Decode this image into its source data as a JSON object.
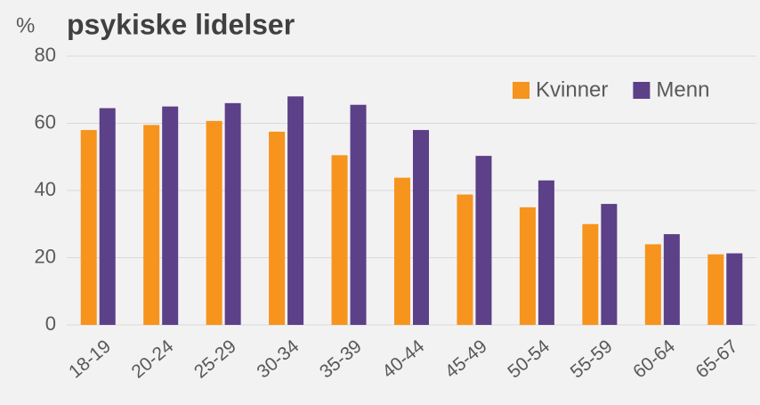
{
  "chart_data": {
    "type": "bar",
    "title": "psykiske lidelser",
    "y_label": "%",
    "categories": [
      "18-19",
      "20-24",
      "25-29",
      "30-34",
      "35-39",
      "40-44",
      "45-49",
      "50-54",
      "55-59",
      "60-64",
      "65-67"
    ],
    "series": [
      {
        "name": "Kvinner",
        "color": "#f7941d",
        "values": [
          58,
          59.5,
          60.7,
          57.5,
          50.5,
          43.8,
          38.8,
          35,
          30,
          24,
          21
        ]
      },
      {
        "name": "Menn",
        "color": "#5c4088",
        "values": [
          64.5,
          65,
          66,
          68,
          65.5,
          58,
          50.3,
          43,
          36,
          27,
          21.3
        ]
      }
    ],
    "ylim": [
      0,
      80
    ],
    "yticks": [
      0,
      20,
      40,
      60,
      80
    ],
    "grid": true,
    "legend": "top-right"
  }
}
